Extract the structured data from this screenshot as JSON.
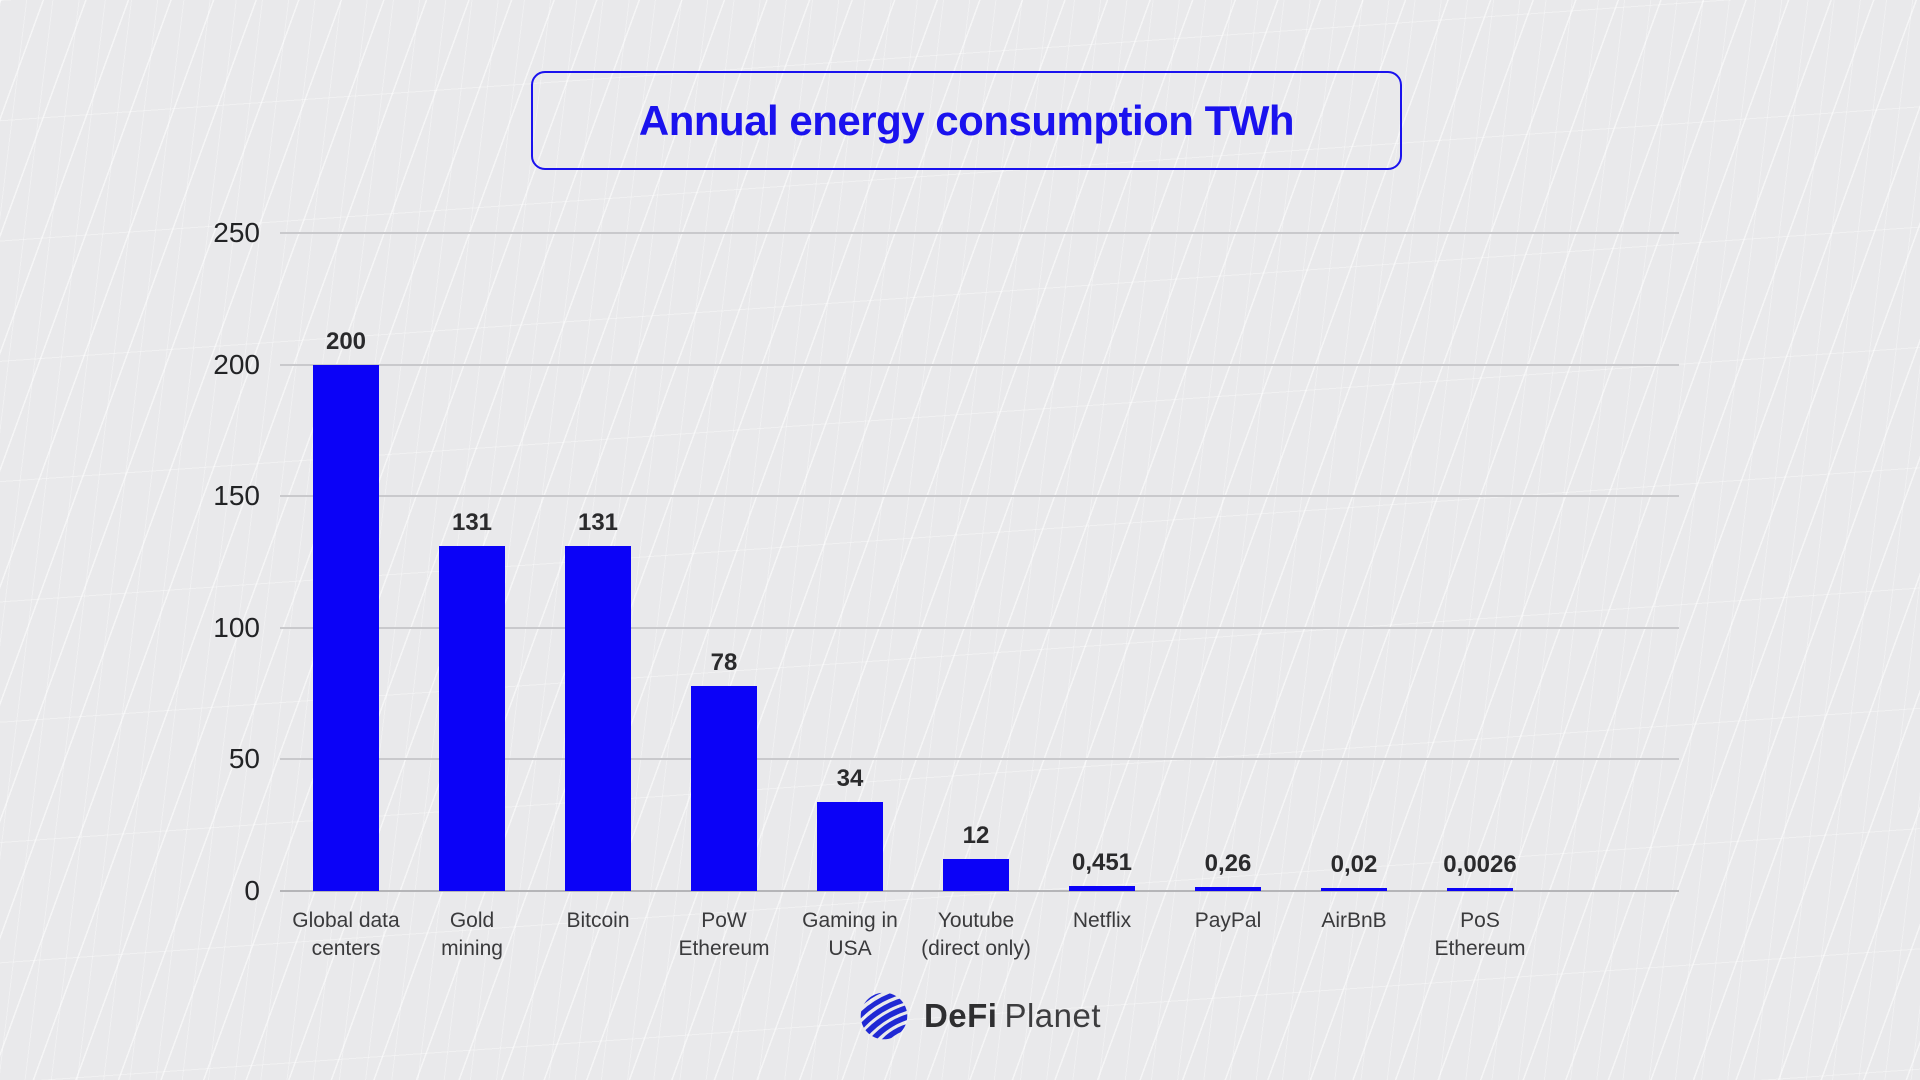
{
  "title": "Annual energy consumption TWh",
  "chart_data": {
    "type": "bar",
    "title": "Annual energy consumption TWh",
    "categories": [
      "Global data\ncenters",
      "Gold\nmining",
      "Bitcoin",
      "PoW\nEthereum",
      "Gaming in\nUSA",
      "Youtube\n(direct only)",
      "Netflix",
      "PayPal",
      "AirBnB",
      "PoS\nEthereum"
    ],
    "values": [
      200,
      131,
      131,
      78,
      34,
      12,
      0.451,
      0.26,
      0.02,
      0.0026
    ],
    "value_labels": [
      "200",
      "131",
      "131",
      "78",
      "34",
      "12",
      "0,451",
      "0,26",
      "0,02",
      "0,0026"
    ],
    "xlabel": "",
    "ylabel": "",
    "ylim": [
      0,
      250
    ],
    "yticks": [
      0,
      50,
      100,
      150,
      200,
      250
    ],
    "grid": true,
    "legend": "none",
    "bar_color": "#0b02f7"
  },
  "colors": {
    "accent_blue": "#1a12ee",
    "bar_blue": "#0b02f7",
    "background": "#e9e9eb",
    "gridline": "#c9c9cc",
    "text_dark": "#2a2a2c"
  },
  "footer": {
    "brand_bold": "DeFi",
    "brand_regular": "Planet",
    "globe_icon": "globe-icon"
  }
}
